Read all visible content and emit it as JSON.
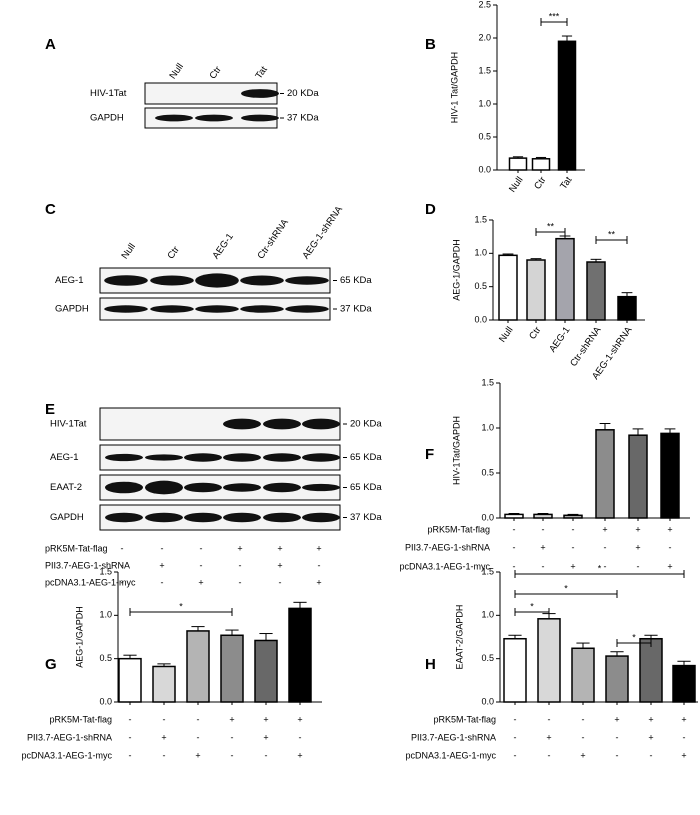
{
  "blots": [
    {
      "panel": "A",
      "lanes": [
        "Null",
        "Ctr",
        "Tat"
      ],
      "rows": [
        "HIV-1Tat",
        "GAPDH"
      ],
      "sizes": [
        "20 KDa",
        "37 KDa"
      ]
    },
    {
      "panel": "C",
      "lanes": [
        "Null",
        "Ctr",
        "AEG-1",
        "Ctr-shRNA",
        "AEG-1-shRNA"
      ],
      "rows": [
        "AEG-1",
        "GAPDH"
      ],
      "sizes": [
        "65 KDa",
        "37 KDa"
      ]
    },
    {
      "panel": "E",
      "rows": [
        "HIV-1Tat",
        "AEG-1",
        "EAAT-2",
        "GAPDH"
      ],
      "sizes": [
        "20 KDa",
        "65 KDa",
        "65 KDa",
        "37 KDa"
      ],
      "treatments": [
        {
          "name": "pRK5M-Tat-flag",
          "marks": [
            "-",
            "-",
            "-",
            "+",
            "+",
            "+"
          ]
        },
        {
          "name": "PII3.7-AEG-1-shRNA",
          "marks": [
            "-",
            "+",
            "-",
            "-",
            "+",
            "-"
          ]
        },
        {
          "name": "pcDNA3.1-AEG-1-myc",
          "marks": [
            "-",
            "-",
            "+",
            "-",
            "-",
            "+"
          ]
        }
      ]
    }
  ],
  "chart_data": [
    {
      "type": "bar",
      "panel": "B",
      "y_label": "HIV-1 Tat/GAPDH",
      "categories": [
        "Null",
        "Ctr",
        "Tat"
      ],
      "values": [
        0.18,
        0.17,
        1.95
      ],
      "errors": [
        0.02,
        0.02,
        0.08
      ],
      "colors": [
        "#ffffff",
        "#ffffff",
        "#000000"
      ],
      "ylim": [
        0,
        2.5
      ],
      "yticks": [
        {
          "value": 0,
          "label": "0.0"
        },
        0.5,
        {
          "value": 1,
          "label": "1.0"
        },
        1.5,
        {
          "value": 2,
          "label": "2.0"
        },
        2.5
      ],
      "annotations": [
        {
          "text": "***",
          "bars": [
            1,
            2
          ]
        }
      ]
    },
    {
      "type": "bar",
      "panel": "D",
      "y_label": "AEG-1/GAPDH",
      "categories": [
        "Null",
        "Ctr",
        "AEG-1",
        "Ctr-shRNA",
        "AEG-1-shRNA"
      ],
      "values": [
        0.97,
        0.9,
        1.22,
        0.87,
        0.35
      ],
      "errors": [
        0.02,
        0.02,
        0.04,
        0.04,
        0.06
      ],
      "colors": [
        "#ffffff",
        "#d4d4d4",
        "#a4a4ac",
        "#707070",
        "#000000"
      ],
      "ylim": [
        0,
        1.5
      ],
      "yticks": [
        {
          "value": 0,
          "label": "0.0"
        },
        0.5,
        {
          "value": 1,
          "label": "1.0"
        },
        1.5
      ],
      "annotations": [
        {
          "text": "**",
          "bars": [
            1,
            2
          ]
        },
        {
          "text": "**",
          "bars": [
            3,
            4
          ]
        }
      ]
    },
    {
      "type": "bar",
      "panel": "F",
      "y_label": "HIV-1Tat/GAPDH",
      "values": [
        0.04,
        0.04,
        0.03,
        0.98,
        0.92,
        0.94
      ],
      "errors": [
        0.01,
        0.01,
        0.01,
        0.07,
        0.07,
        0.05
      ],
      "colors": [
        "#ffffff",
        "#d8d8d8",
        "#b4b4b4",
        "#8c8c8c",
        "#686868",
        "#000000"
      ],
      "ylim": [
        0,
        1.5
      ],
      "yticks": [
        {
          "value": 0,
          "label": "0.0"
        },
        0.5,
        {
          "value": 1,
          "label": "1.0"
        },
        1.5
      ],
      "treatments": [
        {
          "name": "pRK5M-Tat-flag",
          "marks": [
            "-",
            "-",
            "-",
            "+",
            "+",
            "+"
          ]
        },
        {
          "name": "PII3.7-AEG-1-shRNA",
          "marks": [
            "-",
            "+",
            "-",
            "-",
            "+",
            "-"
          ]
        },
        {
          "name": "pcDNA3.1-AEG-1-myc",
          "marks": [
            "-",
            "-",
            "+",
            "-",
            "-",
            "+"
          ]
        }
      ],
      "annotations": []
    },
    {
      "type": "bar",
      "panel": "G",
      "y_label": "AEG-1/GAPDH",
      "values": [
        0.5,
        0.41,
        0.82,
        0.77,
        0.71,
        1.08
      ],
      "errors": [
        0.04,
        0.03,
        0.05,
        0.06,
        0.08,
        0.07
      ],
      "colors": [
        "#ffffff",
        "#d8d8d8",
        "#b4b4b4",
        "#8c8c8c",
        "#686868",
        "#000000"
      ],
      "ylim": [
        0,
        1.5
      ],
      "yticks": [
        {
          "value": 0,
          "label": "0.0"
        },
        0.5,
        {
          "value": 1,
          "label": "1.0"
        },
        1.5
      ],
      "treatments": [
        {
          "name": "pRK5M-Tat-flag",
          "marks": [
            "-",
            "-",
            "-",
            "+",
            "+",
            "+"
          ]
        },
        {
          "name": "PII3.7-AEG-1-shRNA",
          "marks": [
            "-",
            "+",
            "-",
            "-",
            "+",
            "-"
          ]
        },
        {
          "name": "pcDNA3.1-AEG-1-myc",
          "marks": [
            "-",
            "-",
            "+",
            "-",
            "-",
            "+"
          ]
        }
      ],
      "annotations": [
        {
          "text": "*",
          "bars": [
            0,
            3
          ]
        }
      ]
    },
    {
      "type": "bar",
      "panel": "H",
      "y_label": "EAAT-2/GAPDH",
      "values": [
        0.73,
        0.96,
        0.62,
        0.53,
        0.73,
        0.42
      ],
      "errors": [
        0.04,
        0.06,
        0.06,
        0.05,
        0.04,
        0.05
      ],
      "colors": [
        "#ffffff",
        "#d8d8d8",
        "#b4b4b4",
        "#8c8c8c",
        "#686868",
        "#000000"
      ],
      "ylim": [
        0,
        1.5
      ],
      "yticks": [
        {
          "value": 0,
          "label": "0.0"
        },
        0.5,
        {
          "value": 1,
          "label": "1.0"
        },
        1.5
      ],
      "treatments": [
        {
          "name": "pRK5M-Tat-flag",
          "marks": [
            "-",
            "-",
            "-",
            "+",
            "+",
            "+"
          ]
        },
        {
          "name": "PII3.7-AEG-1-shRNA",
          "marks": [
            "-",
            "+",
            "-",
            "-",
            "+",
            "-"
          ]
        },
        {
          "name": "pcDNA3.1-AEG-1-myc",
          "marks": [
            "-",
            "-",
            "+",
            "-",
            "-",
            "+"
          ]
        }
      ],
      "annotations": [
        {
          "text": "*",
          "bars": [
            0,
            1
          ]
        },
        {
          "text": "*",
          "bars": [
            0,
            3
          ]
        },
        {
          "text": "*",
          "bars": [
            0,
            5
          ]
        },
        {
          "text": "*",
          "bars": [
            3,
            4
          ]
        }
      ]
    }
  ]
}
